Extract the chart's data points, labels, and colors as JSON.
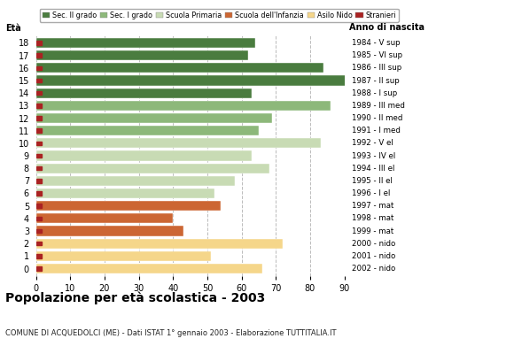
{
  "ages": [
    18,
    17,
    16,
    15,
    14,
    13,
    12,
    11,
    10,
    9,
    8,
    7,
    6,
    5,
    4,
    3,
    2,
    1,
    0
  ],
  "years": [
    "1984 - V sup",
    "1985 - VI sup",
    "1986 - III sup",
    "1987 - II sup",
    "1988 - I sup",
    "1989 - III med",
    "1990 - II med",
    "1991 - I med",
    "1992 - V el",
    "1993 - IV el",
    "1994 - III el",
    "1995 - II el",
    "1996 - I el",
    "1997 - mat",
    "1998 - mat",
    "1999 - mat",
    "2000 - nido",
    "2001 - nido",
    "2002 - nido"
  ],
  "values": [
    64,
    62,
    84,
    91,
    63,
    86,
    69,
    65,
    83,
    63,
    68,
    58,
    52,
    54,
    40,
    43,
    72,
    51,
    66
  ],
  "bar_colors": [
    "#4a7c3f",
    "#4a7c3f",
    "#4a7c3f",
    "#4a7c3f",
    "#4a7c3f",
    "#8db87a",
    "#8db87a",
    "#8db87a",
    "#c8dbb4",
    "#c8dbb4",
    "#c8dbb4",
    "#c8dbb4",
    "#c8dbb4",
    "#cc6633",
    "#cc6633",
    "#cc6633",
    "#f5d68a",
    "#f5d68a",
    "#f5d68a"
  ],
  "legend_labels": [
    "Sec. II grado",
    "Sec. I grado",
    "Scuola Primaria",
    "Scuola dell'Infanzia",
    "Asilo Nido",
    "Stranieri"
  ],
  "legend_colors": [
    "#4a7c3f",
    "#8db87a",
    "#c8dbb4",
    "#cc6633",
    "#f5d68a",
    "#aa2222"
  ],
  "stranieri_color": "#aa2222",
  "title": "Popolazione per età scolastica - 2003",
  "subtitle": "COMUNE DI ACQUEDOLCI (ME) - Dati ISTAT 1° gennaio 2003 - Elaborazione TUTTITALIA.IT",
  "xlabel_eta": "Età",
  "xlabel_anno": "Anno di nascita",
  "xlim": [
    0,
    90
  ],
  "bg_color": "#ffffff",
  "grid_color": "#bbbbbb",
  "bar_height": 0.78
}
